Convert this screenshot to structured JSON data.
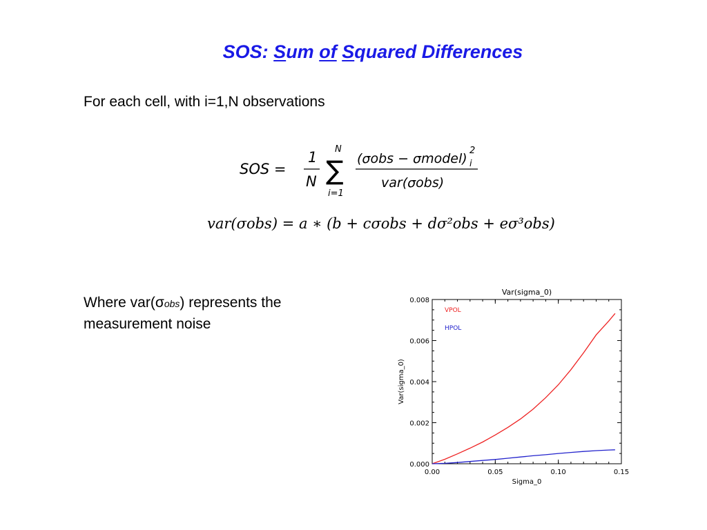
{
  "slide": {
    "title_parts": [
      "SOS:  ",
      "S",
      "um ",
      "of",
      " ",
      "S",
      "quared Differences"
    ],
    "intro": "For each cell, with i=1,N observations",
    "eq1": {
      "lhs": "SOS =",
      "frac_num": "1",
      "frac_den": "N",
      "sum_top": "N",
      "sum_bottom": "i=1",
      "num": "(σobs − σmodel)",
      "num_sup": "2",
      "num_sub": "i",
      "den": "var(σobs)"
    },
    "eq2": "var(σobs) = a ∗ (b + cσobs + dσ²obs + eσ³obs)",
    "where_1": "Where var(σ",
    "where_sub": "obs",
    "where_2": ") represents the",
    "where_3": "measurement noise"
  },
  "chart_data": {
    "type": "line",
    "title": "Var(sigma_0)",
    "xlabel": "Sigma_0",
    "ylabel": "Var(sigma_0)",
    "xlim": [
      0,
      0.15
    ],
    "ylim": [
      0,
      0.008
    ],
    "xticks": [
      "0.00",
      "0.05",
      "0.10",
      "0.15"
    ],
    "yticks": [
      "0.000",
      "0.002",
      "0.004",
      "0.006",
      "0.008"
    ],
    "legend_position": "top-left",
    "series": [
      {
        "name": "VPOL",
        "color": "#ee2222",
        "x": [
          0,
          0.01,
          0.02,
          0.03,
          0.04,
          0.05,
          0.06,
          0.07,
          0.08,
          0.09,
          0.1,
          0.11,
          0.12,
          0.13,
          0.14,
          0.145
        ],
        "y": [
          0,
          0.00022,
          0.00048,
          0.00076,
          0.00106,
          0.0014,
          0.00177,
          0.00218,
          0.00266,
          0.00322,
          0.00385,
          0.00458,
          0.0054,
          0.00628,
          0.00695,
          0.00732
        ]
      },
      {
        "name": "HPOL",
        "color": "#2222cc",
        "x": [
          0,
          0.01,
          0.02,
          0.03,
          0.04,
          0.05,
          0.06,
          0.07,
          0.08,
          0.09,
          0.1,
          0.11,
          0.12,
          0.13,
          0.14,
          0.145
        ],
        "y": [
          0,
          2e-05,
          6e-05,
          0.00011,
          0.00016,
          0.00021,
          0.00027,
          0.00033,
          0.00039,
          0.00044,
          0.0005,
          0.00055,
          0.0006,
          0.00064,
          0.00067,
          0.00068
        ]
      }
    ]
  }
}
